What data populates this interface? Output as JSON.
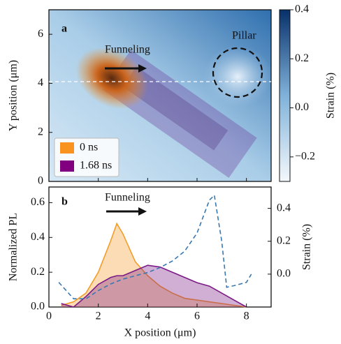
{
  "chart_data": [
    {
      "type": "heatmap",
      "panel_label": "a",
      "ylabel": "Y position (μm)",
      "xlim": [
        0,
        9
      ],
      "ylim": [
        0,
        7
      ],
      "xticks": [
        0,
        2,
        4,
        6,
        8
      ],
      "yticks": [
        0,
        2,
        4,
        6
      ],
      "clim": [
        -0.3,
        0.4
      ],
      "colorbar_label": "Strain (%)",
      "cticks": [
        {
          "value": -0.2,
          "label": "−0.2"
        },
        {
          "value": 0,
          "label": "0.0"
        },
        0.2,
        0.4
      ],
      "annotations": [
        "Funneling",
        "Pillar"
      ],
      "legend": [
        {
          "name": "0 ns",
          "color": "#f7931e"
        },
        {
          "name": "1.68 ns",
          "color": "#800080"
        }
      ]
    },
    {
      "type": "area",
      "panel_label": "b",
      "xlabel": "X position (μm)",
      "ylabel": "Normalized PL",
      "y2label": "Strain (%)",
      "annotation": "Funneling",
      "xlim": [
        0,
        9
      ],
      "ylim": [
        0,
        0.69
      ],
      "y2lim": [
        -0.2,
        0.53
      ],
      "xticks": [
        0,
        2,
        4,
        6,
        8
      ],
      "yticks": [
        {
          "value": 0,
          "label": "0.0"
        },
        0.2,
        0.4,
        0.6
      ],
      "y2ticks": [
        {
          "value": 0,
          "label": "0.0"
        },
        0.2,
        0.4
      ],
      "x": [
        0.5,
        1,
        1.5,
        2,
        2.5,
        2.75,
        3,
        3.5,
        4,
        4.5,
        5,
        5.5,
        6,
        6.5,
        7,
        7.5,
        8
      ],
      "series": [
        {
          "name": "0 ns",
          "color": "#f39c2a",
          "values": [
            0.01,
            0.03,
            0.08,
            0.2,
            0.38,
            0.48,
            0.42,
            0.26,
            0.18,
            0.12,
            0.08,
            0.05,
            0.04,
            0.03,
            0.02,
            0.01,
            0.0
          ]
        },
        {
          "name": "1.68 ns",
          "color": "#7b1a86",
          "values": [
            0.02,
            0.0,
            0.06,
            0.13,
            0.17,
            0.18,
            0.18,
            0.21,
            0.24,
            0.23,
            0.2,
            0.17,
            0.14,
            0.12,
            0.08,
            0.04,
            0.0
          ]
        },
        {
          "axis": "y2",
          "color": "#3a78b0",
          "dashed": true,
          "x": [
            0.4,
            1.0,
            1.5,
            2.0,
            2.5,
            3.0,
            3.5,
            4.0,
            4.5,
            5.0,
            5.5,
            6.0,
            6.5,
            6.7,
            7.0,
            7.2,
            7.5,
            8.0,
            8.2
          ],
          "values": [
            -0.05,
            -0.15,
            -0.15,
            -0.1,
            -0.06,
            -0.03,
            -0.01,
            0.01,
            0.04,
            0.08,
            0.14,
            0.25,
            0.45,
            0.48,
            0.2,
            -0.08,
            -0.07,
            -0.05,
            0.0
          ]
        }
      ]
    }
  ]
}
